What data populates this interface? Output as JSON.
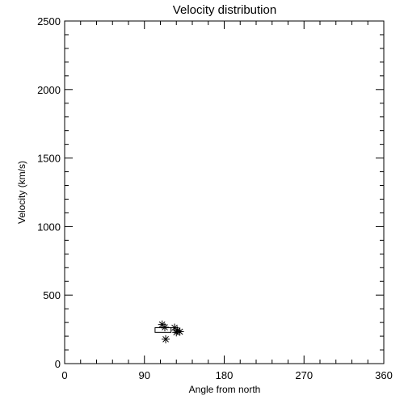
{
  "chart_data": {
    "type": "scatter",
    "title": "Velocity distribution",
    "xlabel": "Angle from north",
    "ylabel": "Velocity (km/s)",
    "xlim": [
      0,
      360
    ],
    "ylim": [
      0,
      2500
    ],
    "xticks": [
      0,
      90,
      180,
      270,
      360
    ],
    "yticks": [
      0,
      500,
      1000,
      1500,
      2000,
      2500
    ],
    "x_minor_step": 18,
    "y_minor_step": 100,
    "grid": false,
    "marker": "asterisk",
    "points": [
      {
        "x": 110,
        "y": 285
      },
      {
        "x": 113,
        "y": 265
      },
      {
        "x": 114,
        "y": 178
      },
      {
        "x": 124,
        "y": 262
      },
      {
        "x": 127,
        "y": 242
      },
      {
        "x": 126,
        "y": 228
      },
      {
        "x": 130,
        "y": 233
      }
    ],
    "box": {
      "x0": 102,
      "x1": 120,
      "y0": 228,
      "y1": 262
    }
  }
}
